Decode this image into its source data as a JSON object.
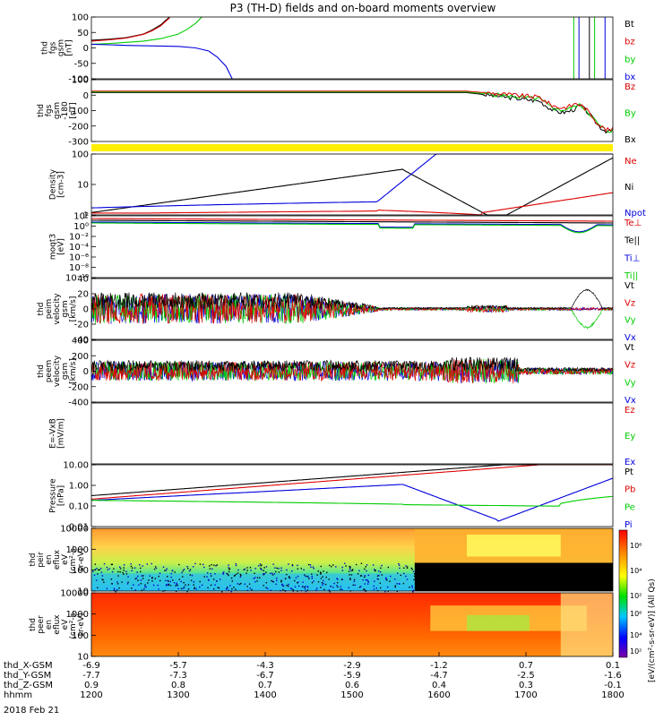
{
  "title": "P3 (TH-D) fields and on-board moments overview",
  "date_label": "2018 Feb 21",
  "chart_data": [
    {
      "type": "line",
      "name": "thd_fgs_gsm",
      "ylabel": [
        "thd",
        "fgs",
        "gsm",
        "[nT]"
      ],
      "ylim": [
        -100,
        100
      ],
      "yticks": [
        "100",
        "50",
        "0",
        "-50",
        "-100"
      ],
      "series": [
        {
          "name": "Bt",
          "color": "#000000",
          "x": [
            0,
            0.2,
            0.4,
            0.6,
            0.7,
            0.8,
            0.85,
            0.9
          ],
          "y": [
            25,
            28,
            33,
            45,
            58,
            75,
            88,
            100
          ]
        },
        {
          "name": "bz",
          "color": "#dd0000",
          "x": [
            0,
            0.2,
            0.4,
            0.6,
            0.7,
            0.8,
            0.85,
            0.9
          ],
          "y": [
            22,
            26,
            32,
            44,
            56,
            72,
            85,
            97
          ]
        },
        {
          "name": "by",
          "color": "#00cc00",
          "x": [
            0,
            0.2,
            0.4,
            0.6,
            0.8,
            1.0,
            1.1,
            1.2,
            1.27
          ],
          "y": [
            12,
            14,
            18,
            22,
            30,
            45,
            60,
            80,
            100
          ]
        },
        {
          "name": "bx",
          "color": "#0000dd",
          "x": [
            0,
            0.2,
            0.4,
            0.6,
            1.0,
            1.2,
            1.35,
            1.45,
            1.55,
            1.62
          ],
          "y": [
            12,
            10,
            8,
            7,
            5,
            0,
            -10,
            -30,
            -60,
            -100
          ]
        }
      ]
    },
    {
      "type": "line",
      "name": "thd_fgs_gsm_offset",
      "ylabel": [
        "thd",
        "fgs",
        "gsm",
        "-180",
        "[nT]"
      ],
      "ylim": [
        -330,
        100
      ],
      "yticks": [
        "100",
        "0",
        "-100",
        "-200",
        "-300"
      ],
      "series": [
        {
          "name": "Bz",
          "color": "#dd0000"
        },
        {
          "name": "By",
          "color": "#00cc00"
        },
        {
          "name": "Bx",
          "color": "#000000"
        }
      ]
    },
    {
      "type": "line",
      "name": "density",
      "ylabel": [
        "Density",
        "[cm-3]"
      ],
      "scale": "log",
      "yticks": [
        "100",
        "10",
        "1"
      ],
      "series": [
        {
          "name": "Ne",
          "color": "#dd0000"
        },
        {
          "name": "Ni",
          "color": "#000000"
        },
        {
          "name": "Npot",
          "color": "#0000dd"
        }
      ]
    },
    {
      "type": "line",
      "name": "temperature",
      "ylabel": [
        "moqt3",
        "[eV]"
      ],
      "scale": "log",
      "yticks": [
        "10²",
        "10⁰",
        "10⁻²",
        "10⁻⁴",
        "10⁻⁶",
        "10⁻⁸",
        "10⁻¹⁰"
      ],
      "series": [
        {
          "name": "Te⊥",
          "color": "#dd0000"
        },
        {
          "name": "Te||",
          "color": "#000000"
        },
        {
          "name": "Ti⊥",
          "color": "#0000dd"
        },
        {
          "name": "Ti||",
          "color": "#00cc00"
        }
      ]
    },
    {
      "type": "line",
      "name": "peim_velocity",
      "ylabel": [
        "thd",
        "peim",
        "velocity",
        "gsm",
        "[km/s]"
      ],
      "ylim": [
        -40,
        40
      ],
      "yticks": [
        "40",
        "20",
        "0",
        "-20",
        "-40"
      ],
      "series": [
        {
          "name": "Vt",
          "color": "#000000"
        },
        {
          "name": "Vz",
          "color": "#dd0000"
        },
        {
          "name": "Vy",
          "color": "#00cc00"
        },
        {
          "name": "Vx",
          "color": "#0000dd"
        }
      ]
    },
    {
      "type": "line",
      "name": "peem_velocity",
      "ylabel": [
        "thd",
        "peem",
        "velocity",
        "gsm",
        "[km/s]"
      ],
      "ylim": [
        -400,
        400
      ],
      "yticks": [
        "400",
        "200",
        "0",
        "-200",
        "-400"
      ],
      "series": [
        {
          "name": "Vt",
          "color": "#000000"
        },
        {
          "name": "Vz",
          "color": "#dd0000"
        },
        {
          "name": "Vy",
          "color": "#00cc00"
        },
        {
          "name": "Vx",
          "color": "#0000dd"
        }
      ]
    },
    {
      "type": "line",
      "name": "efield",
      "ylabel": [
        "E=-VxB",
        "[mV/m]"
      ],
      "series": [
        {
          "name": "Ez",
          "color": "#dd0000"
        },
        {
          "name": "Ey",
          "color": "#00cc00"
        },
        {
          "name": "Ex",
          "color": "#0000dd"
        }
      ]
    },
    {
      "type": "line",
      "name": "pressure",
      "ylabel": [
        "Pressure",
        "[nPa]"
      ],
      "scale": "log",
      "yticks": [
        "10.00",
        "1.00",
        "0.10",
        "0.01"
      ],
      "series": [
        {
          "name": "Pt",
          "color": "#000000"
        },
        {
          "name": "Pb",
          "color": "#dd0000"
        },
        {
          "name": "Pe",
          "color": "#00cc00"
        },
        {
          "name": "Pi",
          "color": "#0000dd"
        }
      ]
    },
    {
      "type": "heatmap",
      "name": "peir_en_eflux",
      "ylabel": [
        "thd",
        "peir",
        "en",
        "eflux",
        "eV",
        "(cm²-s-",
        "sr-eV)"
      ],
      "yticks": [
        "10000",
        "1000",
        "100",
        "10"
      ]
    },
    {
      "type": "heatmap",
      "name": "peer_en_eflux",
      "ylabel": [
        "thd",
        "peer",
        "en",
        "eflux",
        "eV",
        "(cm²-s-",
        "sr-eV)"
      ],
      "yticks": [
        "10000",
        "1000",
        "100",
        "10"
      ]
    }
  ],
  "colorbar": {
    "label": "[eV/(cm²-s-sr-eV)] (All Qs)",
    "ticks": [
      "10⁶",
      "10⁴",
      "10²"
    ]
  },
  "xaxis": {
    "rows": [
      {
        "label": "thd_X-GSM",
        "values": [
          "-6.9",
          "-5.7",
          "-4.3",
          "-2.9",
          "-1.2",
          "0.7",
          "0.1"
        ]
      },
      {
        "label": "thd_Y-GSM",
        "values": [
          "-7.7",
          "-7.3",
          "-6.7",
          "-5.9",
          "-4.7",
          "-2.5",
          "-1.6"
        ]
      },
      {
        "label": "thd_Z-GSM",
        "values": [
          "0.9",
          "0.8",
          "0.7",
          "0.6",
          "0.4",
          "0.3",
          "-0.1"
        ]
      },
      {
        "label": "hhmm",
        "values": [
          "1200",
          "1300",
          "1400",
          "1500",
          "1600",
          "1700",
          "1800"
        ]
      }
    ]
  }
}
